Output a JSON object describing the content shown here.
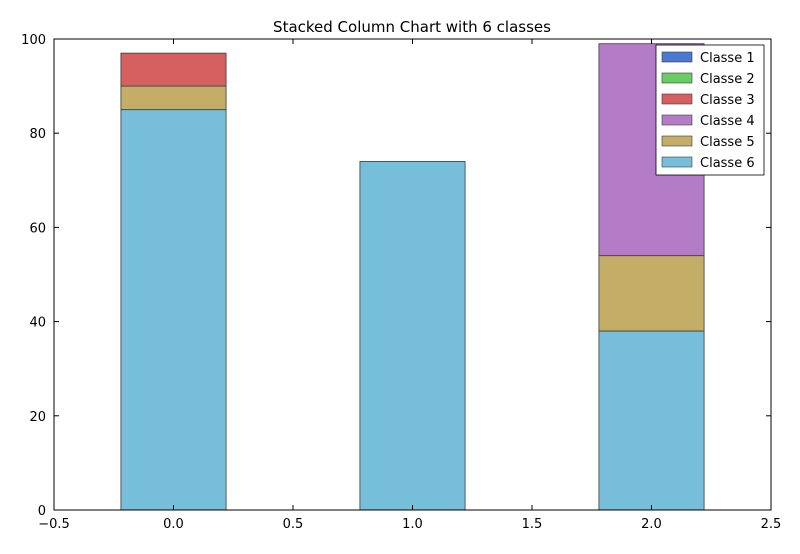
{
  "chart_data": {
    "type": "bar",
    "stacked": true,
    "title": "Stacked Column Chart with 6 classes",
    "xlabel": "",
    "ylabel": "",
    "x": [
      0.0,
      1.0,
      2.0
    ],
    "xlim": [
      -0.5,
      2.5
    ],
    "ylim": [
      0,
      100
    ],
    "xticks": [
      "−0.5",
      "0.0",
      "0.5",
      "1.0",
      "1.5",
      "2.0",
      "2.5"
    ],
    "xtick_values": [
      -0.5,
      0.0,
      0.5,
      1.0,
      1.5,
      2.0,
      2.5
    ],
    "yticks": [
      "0",
      "20",
      "40",
      "60",
      "80",
      "100"
    ],
    "ytick_values": [
      0,
      20,
      40,
      60,
      80,
      100
    ],
    "grid": false,
    "legend_position": "top-right",
    "series": [
      {
        "name": "Classe 1",
        "color": "#4878cf",
        "values": [
          0,
          0,
          0
        ]
      },
      {
        "name": "Classe 2",
        "color": "#6acc65",
        "values": [
          0,
          0,
          0
        ]
      },
      {
        "name": "Classe 3",
        "color": "#d65f5f",
        "values": [
          7,
          0,
          0
        ]
      },
      {
        "name": "Classe 4",
        "color": "#b47cc7",
        "values": [
          0,
          0,
          45
        ]
      },
      {
        "name": "Classe 5",
        "color": "#c4ad66",
        "values": [
          5,
          0,
          16
        ]
      },
      {
        "name": "Classe 6",
        "color": "#77bedb",
        "values": [
          85,
          74,
          38
        ]
      }
    ]
  }
}
